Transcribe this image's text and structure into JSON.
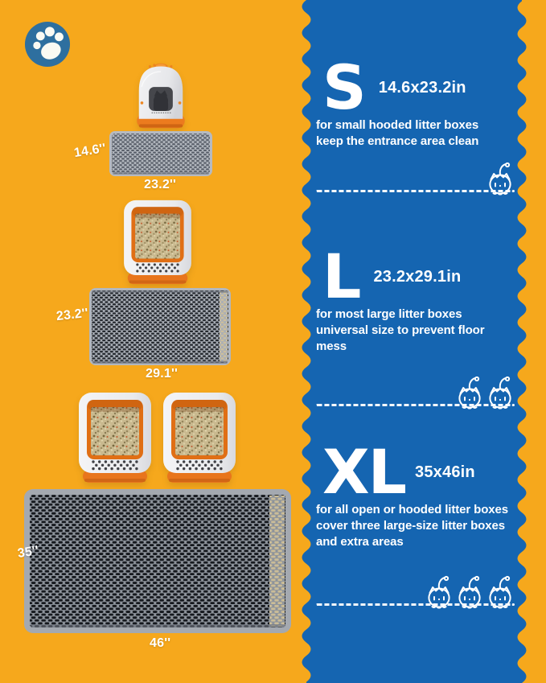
{
  "palette": {
    "background_yellow": "#F6A81C",
    "panel_blue": "#1565B1",
    "badge_blue": "#2E6F9F",
    "box_orange": "#EE7E20",
    "mat_gray": "#A6ABB3",
    "text_white": "#FFFFFF"
  },
  "icons": {
    "badge": "paw-icon",
    "per_size": "cat-icon"
  },
  "mats": {
    "small": {
      "width": "14.6''",
      "length": "23.2''"
    },
    "large": {
      "width": "23.2''",
      "length": "29.1''"
    },
    "xl": {
      "width": "35''",
      "length": "46''"
    }
  },
  "sections": [
    {
      "size": "S",
      "dimensions": "14.6x23.2in",
      "line1": "for small hooded litter boxes",
      "line2": "keep the entrance area clean",
      "cat_count": 1
    },
    {
      "size": "L",
      "dimensions": "23.2x29.1in",
      "line1": "for most large litter boxes",
      "line2": "universal size to prevent floor mess",
      "cat_count": 2
    },
    {
      "size": "XL",
      "dimensions": "35x46in",
      "line1": "for all open or hooded litter boxes",
      "line2": "cover three large-size litter boxes",
      "line3": "and extra areas",
      "cat_count": 3
    }
  ]
}
